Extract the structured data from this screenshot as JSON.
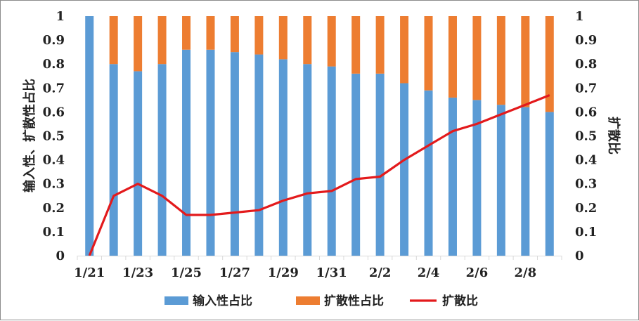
{
  "chart_data": {
    "type": "bar",
    "title": "",
    "x": [
      "1/21",
      "1/22",
      "1/23",
      "1/24",
      "1/25",
      "1/26",
      "1/27",
      "1/28",
      "1/29",
      "1/30",
      "1/31",
      "2/1",
      "2/2",
      "2/3",
      "2/4",
      "2/5",
      "2/6",
      "2/7",
      "2/8",
      "2/9"
    ],
    "x_tick_labels": [
      "1/21",
      "1/23",
      "1/25",
      "1/27",
      "1/29",
      "1/31",
      "2/2",
      "2/4",
      "2/6",
      "2/8"
    ],
    "y_ticks": [
      "0",
      "0.1",
      "0.2",
      "0.3",
      "0.4",
      "0.5",
      "0.6",
      "0.7",
      "0.8",
      "0.9",
      "1"
    ],
    "ylabel_left": "输入性、扩散性占比",
    "ylabel_right": "扩散比",
    "ylim": [
      0,
      1
    ],
    "stacked": true,
    "grid": false,
    "legend_position": "bottom",
    "series": [
      {
        "name": "输入性占比",
        "type": "bar",
        "axis": "left",
        "color": "#5b9bd5",
        "values": [
          1.0,
          0.8,
          0.77,
          0.8,
          0.86,
          0.86,
          0.85,
          0.84,
          0.82,
          0.8,
          0.79,
          0.76,
          0.76,
          0.72,
          0.69,
          0.66,
          0.65,
          0.63,
          0.62,
          0.6
        ]
      },
      {
        "name": "扩散性占比",
        "type": "bar",
        "axis": "left",
        "color": "#ed7d31",
        "values": [
          0.0,
          0.2,
          0.23,
          0.2,
          0.14,
          0.14,
          0.15,
          0.16,
          0.18,
          0.2,
          0.21,
          0.24,
          0.24,
          0.28,
          0.31,
          0.34,
          0.35,
          0.37,
          0.38,
          0.4
        ]
      },
      {
        "name": "扩散比",
        "type": "line",
        "axis": "right",
        "color": "#e31a1c",
        "values": [
          0.0,
          0.25,
          0.3,
          0.25,
          0.17,
          0.17,
          0.18,
          0.19,
          0.23,
          0.26,
          0.27,
          0.32,
          0.33,
          0.4,
          0.46,
          0.52,
          0.55,
          0.59,
          0.63,
          0.67
        ]
      }
    ]
  }
}
